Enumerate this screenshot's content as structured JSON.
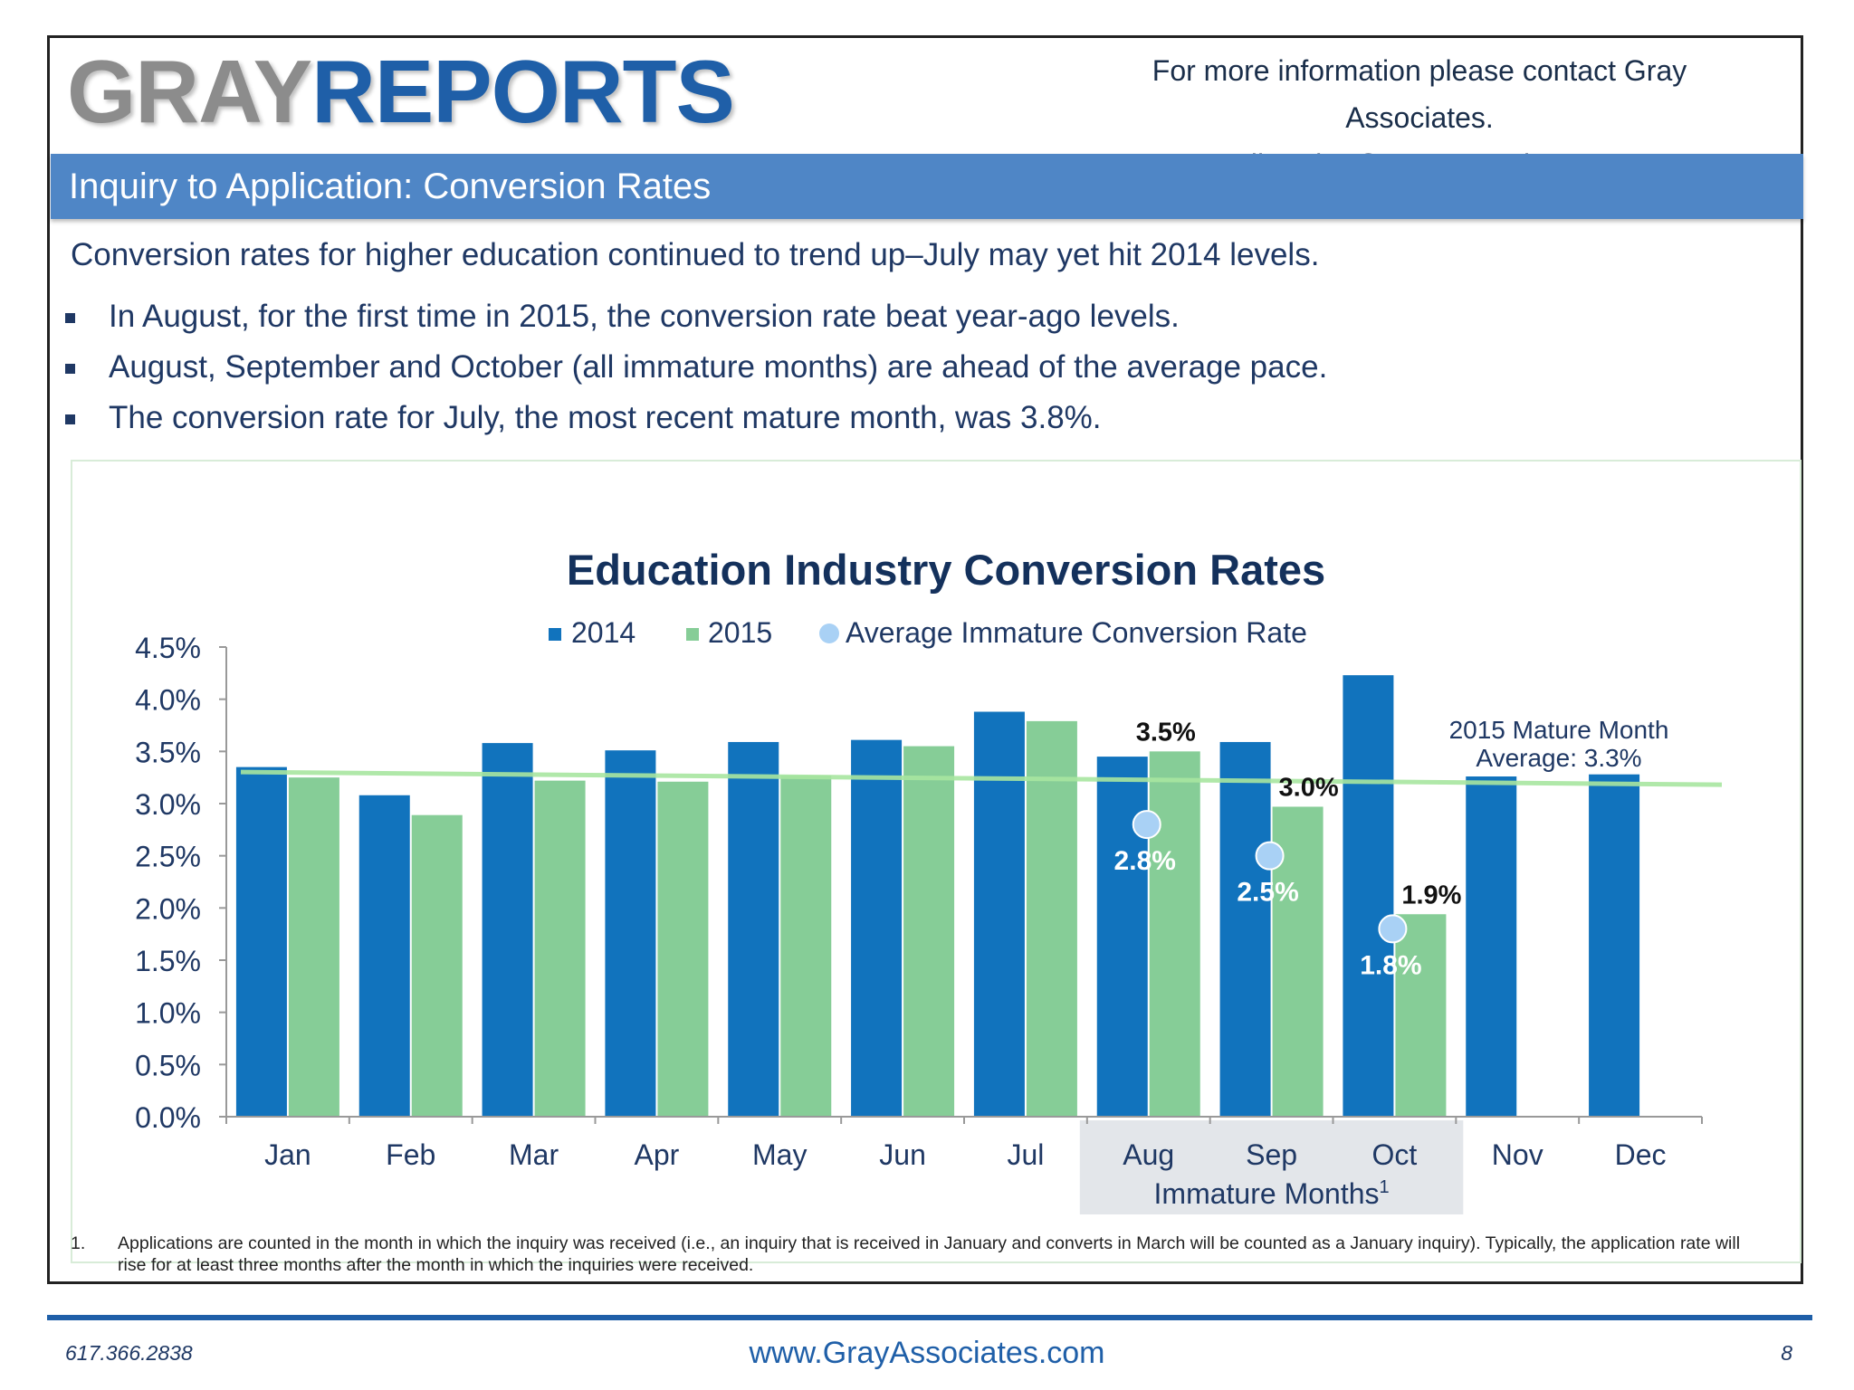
{
  "header": {
    "logo_gray": "GRAY",
    "logo_reports": "REPORTS",
    "contact_line1": "For more information please contact Gray Associates.",
    "contact_line2": "Email:  Sales@GrayAssociates.com"
  },
  "banner": {
    "title": "Inquiry to Application:  Conversion Rates"
  },
  "summary": {
    "intro": "Conversion rates for higher education continued to trend up–July may yet hit 2014 levels.",
    "bullets": [
      "In August, for the first time in 2015, the conversion rate beat year-ago levels.",
      "August, September and October (all immature months) are ahead of the average pace.",
      "The conversion rate for July, the most recent mature month, was 3.8%."
    ]
  },
  "chart_data": {
    "type": "bar",
    "title": "Education Industry Conversion Rates",
    "categories": [
      "Jan",
      "Feb",
      "Mar",
      "Apr",
      "May",
      "Jun",
      "Jul",
      "Aug",
      "Sep",
      "Oct",
      "Nov",
      "Dec"
    ],
    "series": [
      {
        "name": "2014",
        "color": "#1173bd",
        "values": [
          3.35,
          3.08,
          3.58,
          3.51,
          3.59,
          3.61,
          3.88,
          3.45,
          3.59,
          4.23,
          3.26,
          3.28
        ]
      },
      {
        "name": "2015",
        "color": "#86cd97",
        "values": [
          3.25,
          2.89,
          3.22,
          3.21,
          3.27,
          3.55,
          3.79,
          3.5,
          2.97,
          1.94,
          null,
          null
        ]
      },
      {
        "name": "Average Immature Conversion Rate",
        "type": "scatter",
        "color": "#a9d1f5",
        "values": [
          null,
          null,
          null,
          null,
          null,
          null,
          null,
          2.8,
          2.5,
          1.8,
          null,
          null
        ]
      }
    ],
    "reference_line": {
      "value": 3.25,
      "label_line1": "2015 Mature Month",
      "label_line2": "Average:  3.3%",
      "color": "#a8e6a0"
    },
    "bar_labels": [
      {
        "category": "Aug",
        "text": "3.5%"
      },
      {
        "category": "Sep",
        "text": "3.0%"
      },
      {
        "category": "Oct",
        "text": "1.9%"
      }
    ],
    "point_labels": [
      {
        "category": "Aug",
        "text": "2.8%"
      },
      {
        "category": "Sep",
        "text": "2.5%"
      },
      {
        "category": "Oct",
        "text": "1.8%"
      }
    ],
    "highlight": {
      "from": "Aug",
      "to": "Oct",
      "label": "Immature Months",
      "sup": "1"
    },
    "ylim": [
      0,
      4.5
    ],
    "yticks": [
      "0.0%",
      "0.5%",
      "1.0%",
      "1.5%",
      "2.0%",
      "2.5%",
      "3.0%",
      "3.5%",
      "4.0%",
      "4.5%"
    ],
    "legend_position": "top-center",
    "xlabel": "",
    "ylabel": ""
  },
  "footnote": {
    "num": "1.",
    "text": "Applications are counted in the month in which the inquiry was received (i.e., an inquiry that is received in January and converts in March will be counted as a January inquiry).  Typically, the application rate will rise for at least three months after the month in which the inquiries were received."
  },
  "footer": {
    "phone": "617.366.2838",
    "website": "www.GrayAssociates.com",
    "page": "8"
  }
}
